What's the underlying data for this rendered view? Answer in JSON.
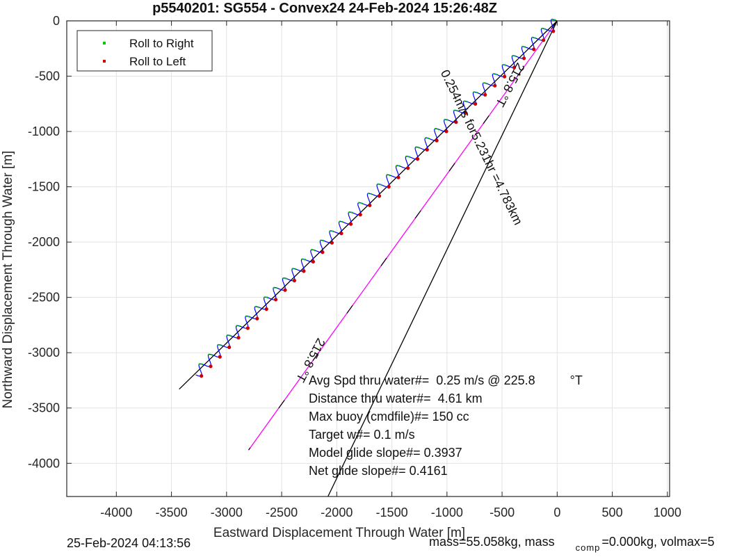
{
  "chart_data": {
    "type": "line",
    "title": "p5540201: SG554 - Convex24 24-Feb-2024 15:26:48Z",
    "xlabel": "Eastward Displacement Through Water [m]",
    "ylabel": "Northward Displacement Through Water [m]",
    "xlim": [
      -4450,
      1020
    ],
    "ylim": [
      -4300,
      0
    ],
    "xticks": [
      -4000,
      -3500,
      -3000,
      -2500,
      -2000,
      -1500,
      -1000,
      -500,
      0,
      500,
      1000
    ],
    "yticks": [
      0,
      -500,
      -1000,
      -1500,
      -2000,
      -2500,
      -3000,
      -3500,
      -4000
    ],
    "grid": true,
    "legend_position": "top-left",
    "legend": [
      {
        "label": "Roll to Right",
        "color": "#00cc00"
      },
      {
        "label": "Roll to Left",
        "color": "#cc0000"
      }
    ],
    "track": {
      "color": "#0000ff",
      "start": [
        0,
        0
      ],
      "end": [
        -3280,
        -3200
      ],
      "waves": 38
    },
    "guide_lines": [
      {
        "name": "upper envelope",
        "color": "#000000",
        "from": [
          0,
          0
        ],
        "to": [
          -3430,
          -3330
        ]
      },
      {
        "name": "cmd heading",
        "color": "#ff00ff",
        "from": [
          0,
          0
        ],
        "to": [
          -2800,
          -3880
        ]
      },
      {
        "name": "current direction",
        "color": "#000000",
        "from": [
          0,
          0
        ],
        "to": [
          -2080,
          -4300
        ]
      }
    ],
    "annotations": [
      {
        "text": "215.8 °T",
        "x": -2270,
        "y": -3050,
        "angle": 118
      },
      {
        "text": "215.8 °T",
        "x": -460,
        "y": -560,
        "angle": 118
      },
      {
        "text": "0.254m/s for5.231hr =4.783km",
        "x": -720,
        "y": -1160,
        "angle": 64
      }
    ],
    "info_lines": [
      "Avg Spd thru water#=  0.25 m/s @ 225.8          °T",
      "Distance thru water#=  4.61 km",
      "Max buoy (cmdfile)#= 150 cc",
      "Target w#= 0.1 m/s",
      "Model glide slope#= 0.3937",
      "Net glide slope#= 0.4161"
    ]
  },
  "footer": {
    "date": "25-Feb-2024 04:13:56",
    "mass_text": "mass=55.058kg, mass",
    "mass_sub": "comp",
    "mass_rest": "=0.000kg, volmax=5"
  }
}
